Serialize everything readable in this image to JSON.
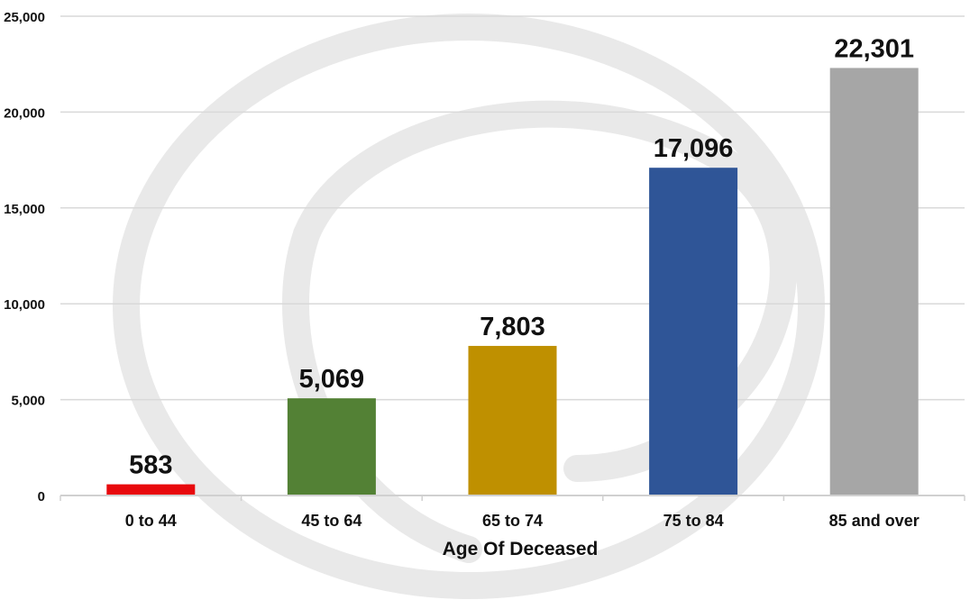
{
  "chart_data": {
    "type": "bar",
    "title": "",
    "xlabel": "Age Of Deceased",
    "ylabel": "",
    "categories": [
      "0 to 44",
      "45 to 64",
      "65 to 74",
      "75 to 84",
      "85 and over"
    ],
    "values": [
      583,
      5069,
      7803,
      17096,
      22301
    ],
    "value_labels": [
      "583",
      "5,069",
      "7,803",
      "17,096",
      "22,301"
    ],
    "bar_colors": [
      "#e8090d",
      "#538135",
      "#bf9000",
      "#2f5597",
      "#a6a6a6"
    ],
    "ylim": [
      0,
      25000
    ],
    "yticks": [
      0,
      5000,
      10000,
      15000,
      20000,
      25000
    ],
    "ytick_labels": [
      "0",
      "5,000",
      "10,000",
      "15,000",
      "20,000",
      "25,000"
    ],
    "grid": true,
    "legend": "none"
  },
  "watermark": {
    "icon": "circular-swirl-logo",
    "color": "#e6e6e6"
  }
}
